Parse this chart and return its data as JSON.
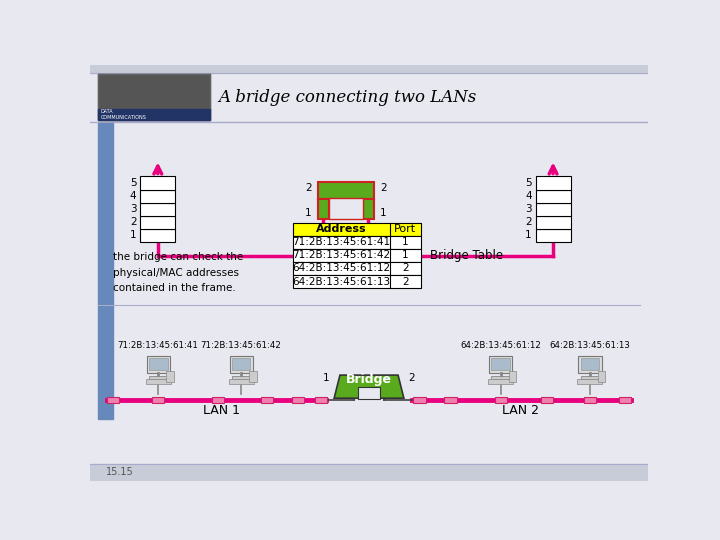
{
  "title": "A bridge connecting two LANs",
  "subtitle_text": "the bridge can check the\nphysical/MAC addresses\ncontained in the frame.",
  "page_number": "15.15",
  "bridge_label": "Bridge",
  "bridge_table_label": "Bridge Table",
  "lan1_label": "LAN 1",
  "lan2_label": "LAN 2",
  "table_headers": [
    "Address",
    "Port"
  ],
  "table_rows": [
    [
      "71:2B:13:45:61:41",
      "1"
    ],
    [
      "71:2B:13:45:61:42",
      "1"
    ],
    [
      "64:2B:13:45:61:12",
      "2"
    ],
    [
      "64:2B:13:45:61:13",
      "2"
    ]
  ],
  "mac_labels": [
    "71:2B:13:45:61:41",
    "71:2B:13:45:61:42",
    "64:2B:13:45:61:12",
    "64:2B:13:45:61:13"
  ],
  "frame_numbers": [
    "5",
    "4",
    "3",
    "2",
    "1"
  ],
  "bg_color": "#e8e8f0",
  "pink_color": "#e8007f",
  "green_color": "#5aaa1e",
  "yellow_color": "#ffff00",
  "white": "#ffffff",
  "black": "#000000",
  "sidebar_color": "#6688bb",
  "header_line_color": "#aaaacc"
}
